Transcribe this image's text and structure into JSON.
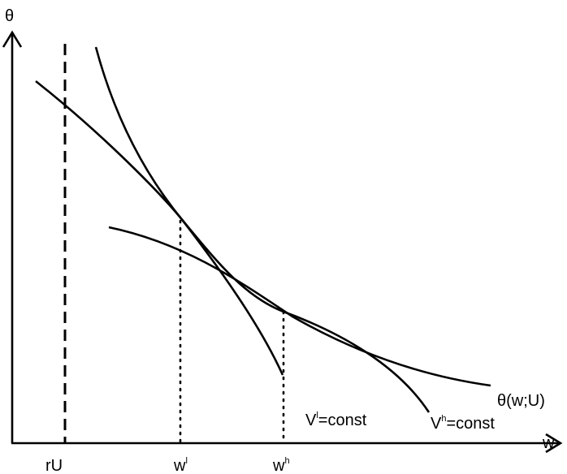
{
  "axes": {
    "y_label": "θ",
    "x_label": "w"
  },
  "ticks": {
    "ru": "rU",
    "wl_base": "w",
    "wl_sup": "l",
    "wh_base": "w",
    "wh_sup": "h"
  },
  "curves": {
    "theta_label": "θ(w;U)",
    "vl_base": "V",
    "vl_sup": "l",
    "vl_rest": "=const",
    "vh_base": "V",
    "vh_sup": "h",
    "vh_rest": "=const"
  }
}
